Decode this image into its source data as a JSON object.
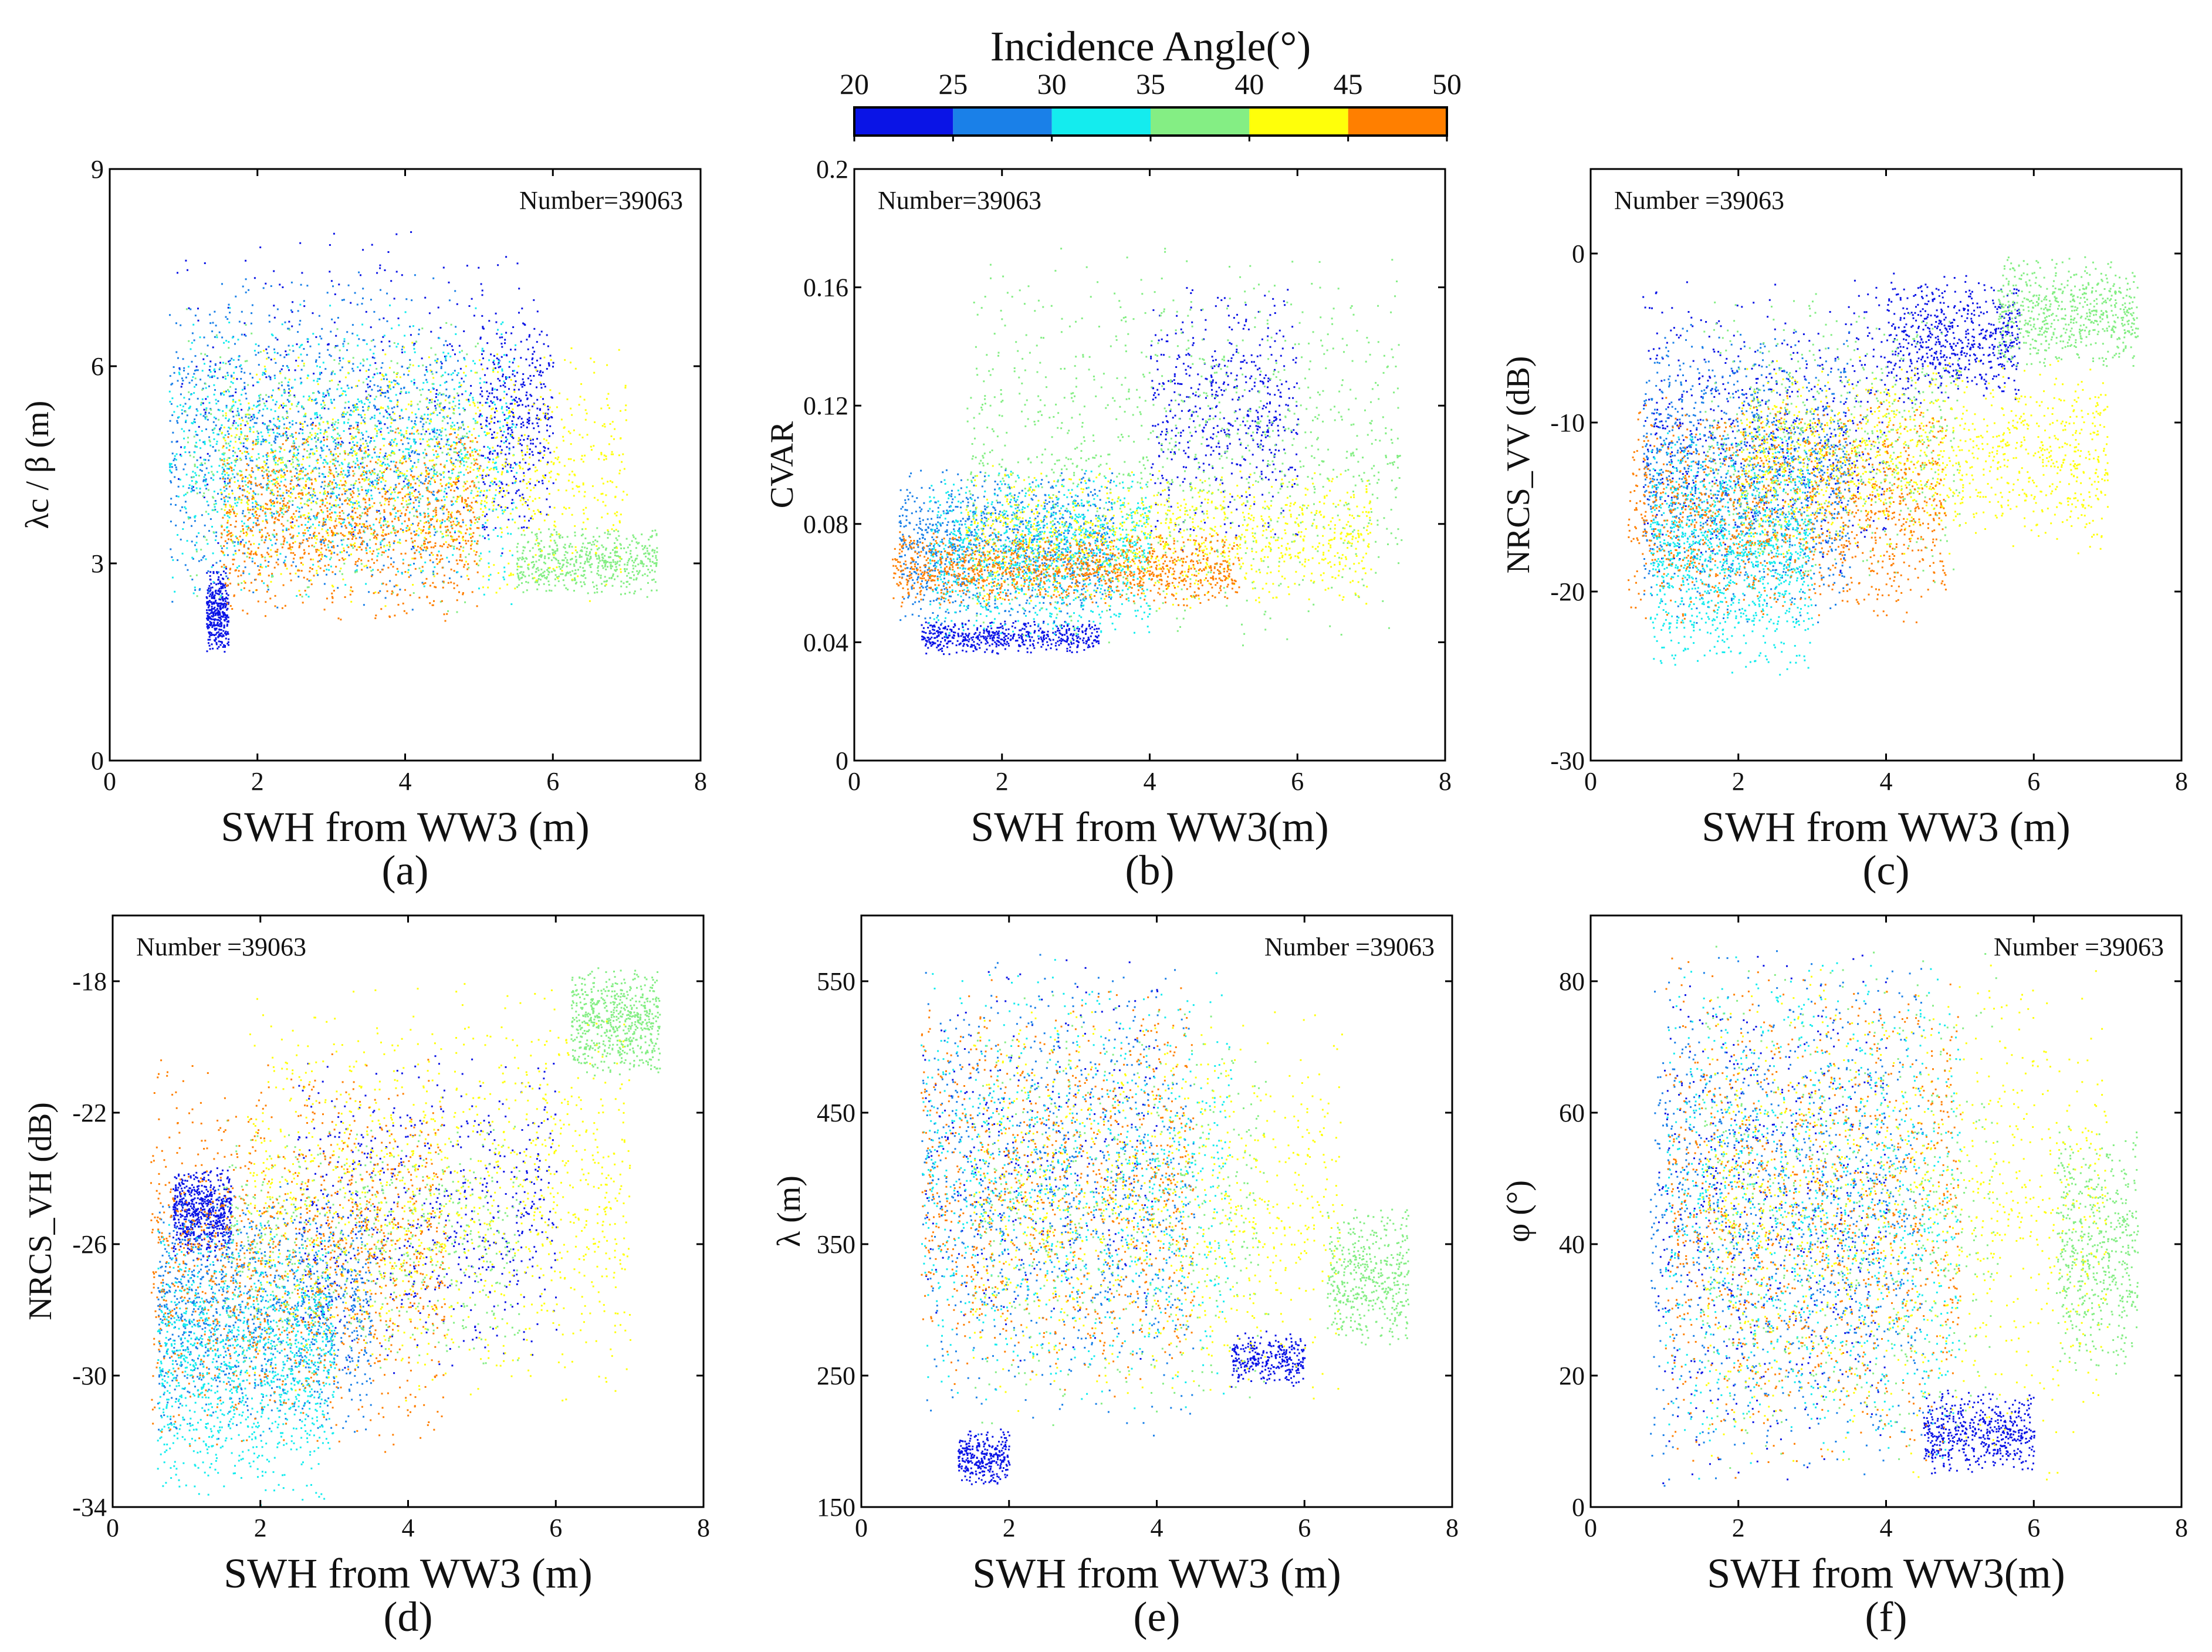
{
  "figure": {
    "colorbar": {
      "title": "Incidence Angle(°)",
      "ticks": [
        20,
        25,
        30,
        35,
        40,
        45,
        50
      ],
      "bins": [
        {
          "range": [
            20,
            25
          ],
          "color": "#0a14e6"
        },
        {
          "range": [
            25,
            30
          ],
          "color": "#1a80e8"
        },
        {
          "range": [
            30,
            35
          ],
          "color": "#14ecee"
        },
        {
          "range": [
            35,
            40
          ],
          "color": "#84ee84"
        },
        {
          "range": [
            40,
            45
          ],
          "color": "#ffff0a"
        },
        {
          "range": [
            45,
            50
          ],
          "color": "#ff7f00"
        }
      ]
    }
  },
  "chart_data": [
    {
      "type": "scatter",
      "panel_label": "(a)",
      "xlabel": "SWH from WW3 (m)",
      "ylabel": "λc / β (m)",
      "xlim": [
        0,
        8
      ],
      "ylim": [
        0,
        9
      ],
      "xticks": [
        0,
        2,
        4,
        6,
        8
      ],
      "yticks": [
        0,
        3,
        6,
        9
      ],
      "annotation": "Number=39063",
      "annotation_position": "top-right",
      "number_of_points": 39063,
      "series": [
        {
          "name": "20-25°",
          "clusters": [
            {
              "x": [
                0.9,
                5.9
              ],
              "y": [
                3.0,
                8.2
              ]
            },
            {
              "x": [
                1.3,
                1.6
              ],
              "y": [
                1.6,
                3.0
              ]
            },
            {
              "x": [
                5.0,
                6.0
              ],
              "y": [
                3.5,
                7.0
              ]
            }
          ]
        },
        {
          "name": "25-30°",
          "clusters": [
            {
              "x": [
                0.8,
                4.8
              ],
              "y": [
                2.2,
                7.6
              ]
            }
          ]
        },
        {
          "name": "30-35°",
          "clusters": [
            {
              "x": [
                0.8,
                5.5
              ],
              "y": [
                2.3,
                7.0
              ]
            }
          ]
        },
        {
          "name": "35-40°",
          "clusters": [
            {
              "x": [
                1.0,
                5.0
              ],
              "y": [
                2.2,
                7.0
              ]
            },
            {
              "x": [
                5.5,
                7.4
              ],
              "y": [
                2.5,
                3.6
              ]
            }
          ]
        },
        {
          "name": "40-45°",
          "clusters": [
            {
              "x": [
                1.5,
                7.0
              ],
              "y": [
                2.3,
                6.5
              ]
            }
          ]
        },
        {
          "name": "45-50°",
          "clusters": [
            {
              "x": [
                1.5,
                5.0
              ],
              "y": [
                2.1,
                5.2
              ]
            }
          ]
        }
      ]
    },
    {
      "type": "scatter",
      "panel_label": "(b)",
      "xlabel": "SWH from WW3(m)",
      "ylabel": "CVAR",
      "xlim": [
        0,
        8
      ],
      "ylim": [
        0,
        0.2
      ],
      "xticks": [
        0,
        2,
        4,
        6,
        8
      ],
      "yticks": [
        0,
        0.04,
        0.08,
        0.12,
        0.16,
        0.2
      ],
      "annotation": "Number=39063",
      "annotation_position": "top-left",
      "number_of_points": 39063,
      "series": [
        {
          "name": "20-25°",
          "clusters": [
            {
              "x": [
                0.9,
                3.3
              ],
              "y": [
                0.036,
                0.048
              ]
            },
            {
              "x": [
                4.0,
                6.0
              ],
              "y": [
                0.07,
                0.165
              ]
            }
          ]
        },
        {
          "name": "25-30°",
          "clusters": [
            {
              "x": [
                0.6,
                3.5
              ],
              "y": [
                0.045,
                0.1
              ]
            }
          ]
        },
        {
          "name": "30-35°",
          "clusters": [
            {
              "x": [
                1.0,
                4.0
              ],
              "y": [
                0.04,
                0.1
              ]
            }
          ]
        },
        {
          "name": "35-40°",
          "clusters": [
            {
              "x": [
                1.5,
                7.4
              ],
              "y": [
                0.036,
                0.175
              ]
            }
          ]
        },
        {
          "name": "40-45°",
          "clusters": [
            {
              "x": [
                1.5,
                7.0
              ],
              "y": [
                0.05,
                0.1
              ]
            }
          ]
        },
        {
          "name": "45-50°",
          "clusters": [
            {
              "x": [
                0.5,
                5.2
              ],
              "y": [
                0.052,
                0.078
              ]
            }
          ]
        }
      ]
    },
    {
      "type": "scatter",
      "panel_label": "(c)",
      "xlabel": "SWH from WW3 (m)",
      "ylabel": "NRCS_VV (dB)",
      "xlim": [
        0,
        8
      ],
      "ylim": [
        -30,
        5
      ],
      "xticks": [
        0,
        2,
        4,
        6,
        8
      ],
      "yticks": [
        -30,
        -20,
        -10,
        0
      ],
      "annotation": "Number =39063",
      "annotation_position": "top-left",
      "number_of_points": 39063,
      "series": [
        {
          "name": "20-25°",
          "clusters": [
            {
              "x": [
                0.7,
                4.0
              ],
              "y": [
                -20,
                -1
              ]
            },
            {
              "x": [
                4.0,
                5.8
              ],
              "y": [
                -9,
                -1
              ]
            }
          ]
        },
        {
          "name": "25-30°",
          "clusters": [
            {
              "x": [
                0.7,
                3.5
              ],
              "y": [
                -22,
                -4
              ]
            }
          ]
        },
        {
          "name": "30-35°",
          "clusters": [
            {
              "x": [
                0.8,
                3.0
              ],
              "y": [
                -25,
                -10
              ]
            }
          ]
        },
        {
          "name": "35-40°",
          "clusters": [
            {
              "x": [
                1.5,
                5.0
              ],
              "y": [
                -20,
                -2
              ]
            },
            {
              "x": [
                5.5,
                7.4
              ],
              "y": [
                -7,
                0
              ]
            }
          ]
        },
        {
          "name": "40-45°",
          "clusters": [
            {
              "x": [
                2.0,
                7.0
              ],
              "y": [
                -18,
                -6
              ]
            }
          ]
        },
        {
          "name": "45-50°",
          "clusters": [
            {
              "x": [
                0.5,
                4.8
              ],
              "y": [
                -22,
                -8
              ]
            }
          ]
        }
      ]
    },
    {
      "type": "scatter",
      "panel_label": "(d)",
      "xlabel": "SWH from WW3 (m)",
      "ylabel": "NRCS_VH (dB)",
      "xlim": [
        0,
        8
      ],
      "ylim": [
        -34,
        -16
      ],
      "xticks": [
        0,
        2,
        4,
        6,
        8
      ],
      "yticks": [
        -34,
        -30,
        -26,
        -22,
        -18
      ],
      "annotation": "Number =39063",
      "annotation_position": "top-left",
      "number_of_points": 39063,
      "series": [
        {
          "name": "20-25°",
          "clusters": [
            {
              "x": [
                0.8,
                1.6
              ],
              "y": [
                -26.5,
                -23.5
              ]
            },
            {
              "x": [
                2.5,
                6.0
              ],
              "y": [
                -30,
                -20
              ]
            }
          ]
        },
        {
          "name": "25-30°",
          "clusters": [
            {
              "x": [
                0.6,
                3.5
              ],
              "y": [
                -32,
                -24
              ]
            }
          ]
        },
        {
          "name": "30-35°",
          "clusters": [
            {
              "x": [
                0.6,
                3.0
              ],
              "y": [
                -34,
                -25
              ]
            }
          ]
        },
        {
          "name": "35-40°",
          "clusters": [
            {
              "x": [
                1.5,
                5.5
              ],
              "y": [
                -30,
                -22
              ]
            },
            {
              "x": [
                6.2,
                7.4
              ],
              "y": [
                -21,
                -17.5
              ]
            }
          ]
        },
        {
          "name": "40-45°",
          "clusters": [
            {
              "x": [
                1.8,
                7.0
              ],
              "y": [
                -31,
                -18
              ]
            }
          ]
        },
        {
          "name": "45-50°",
          "clusters": [
            {
              "x": [
                0.5,
                4.5
              ],
              "y": [
                -32.5,
                -20
              ]
            }
          ]
        }
      ]
    },
    {
      "type": "scatter",
      "panel_label": "(e)",
      "xlabel": "SWH from WW3 (m)",
      "ylabel": "λ (m)",
      "xlim": [
        0,
        8
      ],
      "ylim": [
        150,
        600
      ],
      "xticks": [
        0,
        2,
        4,
        6,
        8
      ],
      "yticks": [
        150,
        250,
        350,
        450,
        550
      ],
      "annotation": "Number =39063",
      "annotation_position": "top-right",
      "number_of_points": 39063,
      "series": [
        {
          "name": "20-25°",
          "clusters": [
            {
              "x": [
                1.3,
                2.0
              ],
              "y": [
                165,
                210
              ]
            },
            {
              "x": [
                0.8,
                4.0
              ],
              "y": [
                250,
                575
              ]
            },
            {
              "x": [
                5.0,
                6.0
              ],
              "y": [
                240,
                285
              ]
            }
          ]
        },
        {
          "name": "25-30°",
          "clusters": [
            {
              "x": [
                0.8,
                4.5
              ],
              "y": [
                200,
                575
              ]
            }
          ]
        },
        {
          "name": "30-35°",
          "clusters": [
            {
              "x": [
                0.8,
                5.0
              ],
              "y": [
                220,
                575
              ]
            }
          ]
        },
        {
          "name": "35-40°",
          "clusters": [
            {
              "x": [
                1.5,
                5.5
              ],
              "y": [
                200,
                550
              ]
            },
            {
              "x": [
                6.3,
                7.4
              ],
              "y": [
                270,
                380
              ]
            }
          ]
        },
        {
          "name": "40-45°",
          "clusters": [
            {
              "x": [
                1.5,
                6.5
              ],
              "y": [
                220,
                540
              ]
            }
          ]
        },
        {
          "name": "45-50°",
          "clusters": [
            {
              "x": [
                0.8,
                4.5
              ],
              "y": [
                230,
                560
              ]
            }
          ]
        }
      ]
    },
    {
      "type": "scatter",
      "panel_label": "(f)",
      "xlabel": "SWH from WW3(m)",
      "ylabel": "φ (°)",
      "xlim": [
        0,
        8
      ],
      "ylim": [
        0,
        90
      ],
      "xticks": [
        0,
        2,
        4,
        6,
        8
      ],
      "yticks": [
        0,
        20,
        40,
        60,
        80
      ],
      "annotation": "Number =39063",
      "annotation_position": "top-right",
      "number_of_points": 39063,
      "series": [
        {
          "name": "20-25°",
          "clusters": [
            {
              "x": [
                0.9,
                4.0
              ],
              "y": [
                3,
                86
              ]
            },
            {
              "x": [
                4.5,
                6.0
              ],
              "y": [
                5,
                18
              ]
            }
          ]
        },
        {
          "name": "25-30°",
          "clusters": [
            {
              "x": [
                0.8,
                4.5
              ],
              "y": [
                3,
                86
              ]
            }
          ]
        },
        {
          "name": "30-35°",
          "clusters": [
            {
              "x": [
                1.0,
                5.0
              ],
              "y": [
                3,
                86
              ]
            }
          ]
        },
        {
          "name": "35-40°",
          "clusters": [
            {
              "x": [
                1.5,
                5.5
              ],
              "y": [
                3,
                86
              ]
            },
            {
              "x": [
                6.3,
                7.4
              ],
              "y": [
                18,
                60
              ]
            }
          ]
        },
        {
          "name": "40-45°",
          "clusters": [
            {
              "x": [
                1.5,
                7.0
              ],
              "y": [
                3,
                86
              ]
            }
          ]
        },
        {
          "name": "45-50°",
          "clusters": [
            {
              "x": [
                1.0,
                5.0
              ],
              "y": [
                3,
                87
              ]
            }
          ]
        }
      ]
    }
  ]
}
